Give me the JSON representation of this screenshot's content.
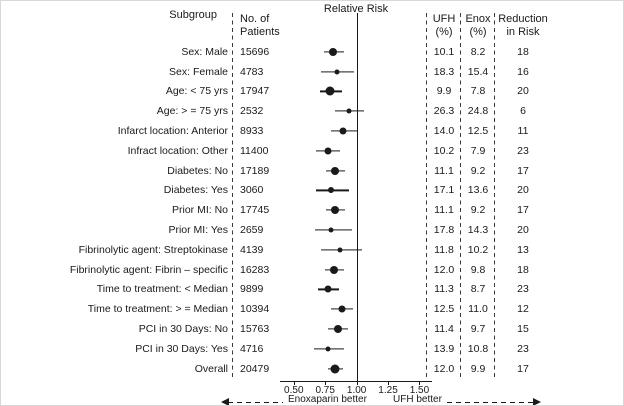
{
  "headers": {
    "subgroup": "Subgroup",
    "patients": "No. of\nPatients",
    "relative_risk": "Relative Risk",
    "ufh": "UFH\n(%)",
    "enox": "Enox\n(%)",
    "reduction": "Reduction\nin Risk"
  },
  "colors": {
    "ink": "#1a1a1a",
    "background": "#ffffff"
  },
  "chart_data": {
    "type": "forest",
    "title": "Relative Risk",
    "x_axis": {
      "range": [
        0.43,
        1.56
      ],
      "reference_line": 1.0,
      "ticks": [
        {
          "value": 0.5,
          "label": "0.50"
        },
        {
          "value": 0.75,
          "label": "0.75"
        },
        {
          "value": 1.0,
          "label": "1.00"
        },
        {
          "value": 1.25,
          "label": "1.25"
        },
        {
          "value": 1.5,
          "label": "1.50"
        }
      ]
    },
    "footer": {
      "left_label": "Enoxaparin better",
      "right_label": "UFH better"
    },
    "rows": [
      {
        "subgroup": "Sex: Male",
        "patients": "15696",
        "rr": 0.81,
        "ci_low": 0.74,
        "ci_high": 0.9,
        "marker": 8,
        "ufh": "10.1",
        "enox": "8.2",
        "reduction": "18"
      },
      {
        "subgroup": "Sex: Female",
        "patients": "4783",
        "rr": 0.84,
        "ci_low": 0.72,
        "ci_high": 0.98,
        "marker": 5,
        "ufh": "18.3",
        "enox": "15.4",
        "reduction": "16"
      },
      {
        "subgroup": "Age: < 75 yrs",
        "patients": "17947",
        "rr": 0.79,
        "ci_low": 0.71,
        "ci_high": 0.88,
        "marker": 9,
        "ufh": "9.9",
        "enox": "7.8",
        "reduction": "20"
      },
      {
        "subgroup": "Age: > = 75 yrs",
        "patients": "2532",
        "rr": 0.94,
        "ci_low": 0.83,
        "ci_high": 1.06,
        "marker": 5,
        "ufh": "26.3",
        "enox": "24.8",
        "reduction": "6"
      },
      {
        "subgroup": "Infarct location: Anterior",
        "patients": "8933",
        "rr": 0.89,
        "ci_low": 0.8,
        "ci_high": 1.0,
        "marker": 7,
        "ufh": "14.0",
        "enox": "12.5",
        "reduction": "11"
      },
      {
        "subgroup": "Infract location: Other",
        "patients": "11400",
        "rr": 0.77,
        "ci_low": 0.68,
        "ci_high": 0.87,
        "marker": 7,
        "ufh": "10.2",
        "enox": "7.9",
        "reduction": "23"
      },
      {
        "subgroup": "Diabetes: No",
        "patients": "17189",
        "rr": 0.83,
        "ci_low": 0.76,
        "ci_high": 0.91,
        "marker": 8,
        "ufh": "11.1",
        "enox": "9.2",
        "reduction": "17"
      },
      {
        "subgroup": "Diabetes: Yes",
        "patients": "3060",
        "rr": 0.8,
        "ci_low": 0.68,
        "ci_high": 0.94,
        "marker": 6,
        "ufh": "17.1",
        "enox": "13.6",
        "reduction": "20"
      },
      {
        "subgroup": "Prior MI: No",
        "patients": "17745",
        "rr": 0.83,
        "ci_low": 0.76,
        "ci_high": 0.91,
        "marker": 8,
        "ufh": "11.1",
        "enox": "9.2",
        "reduction": "17"
      },
      {
        "subgroup": "Prior MI: Yes",
        "patients": "2659",
        "rr": 0.8,
        "ci_low": 0.67,
        "ci_high": 0.96,
        "marker": 5,
        "ufh": "17.8",
        "enox": "14.3",
        "reduction": "20"
      },
      {
        "subgroup": "Fibrinolytic agent: Streptokinase",
        "patients": "4139",
        "rr": 0.87,
        "ci_low": 0.72,
        "ci_high": 1.04,
        "marker": 5,
        "ufh": "11.8",
        "enox": "10.2",
        "reduction": "13"
      },
      {
        "subgroup": "Fibrinolytic agent: Fibrin – specific",
        "patients": "16283",
        "rr": 0.82,
        "ci_low": 0.75,
        "ci_high": 0.9,
        "marker": 8,
        "ufh": "12.0",
        "enox": "9.8",
        "reduction": "18"
      },
      {
        "subgroup": "Time to treatment: < Median",
        "patients": "9899",
        "rr": 0.77,
        "ci_low": 0.69,
        "ci_high": 0.86,
        "marker": 7,
        "ufh": "11.3",
        "enox": "8.7",
        "reduction": "23"
      },
      {
        "subgroup": "Time to treatment: > = Median",
        "patients": "10394",
        "rr": 0.88,
        "ci_low": 0.8,
        "ci_high": 0.97,
        "marker": 7,
        "ufh": "12.5",
        "enox": "11.0",
        "reduction": "12"
      },
      {
        "subgroup": "PCI in 30 Days: No",
        "patients": "15763",
        "rr": 0.85,
        "ci_low": 0.77,
        "ci_high": 0.93,
        "marker": 8,
        "ufh": "11.4",
        "enox": "9.7",
        "reduction": "15"
      },
      {
        "subgroup": "PCI in 30 Days: Yes",
        "patients": "4716",
        "rr": 0.77,
        "ci_low": 0.66,
        "ci_high": 0.9,
        "marker": 5,
        "ufh": "13.9",
        "enox": "10.8",
        "reduction": "23"
      },
      {
        "subgroup": "Overall",
        "patients": "20479",
        "rr": 0.83,
        "ci_low": 0.77,
        "ci_high": 0.89,
        "marker": 9,
        "ufh": "12.0",
        "enox": "9.9",
        "reduction": "17"
      }
    ]
  }
}
